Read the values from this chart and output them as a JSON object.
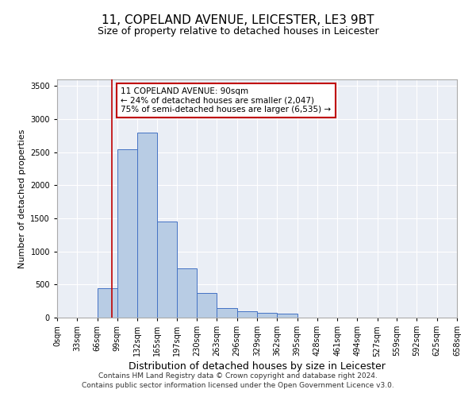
{
  "title_line1": "11, COPELAND AVENUE, LEICESTER, LE3 9BT",
  "title_line2": "Size of property relative to detached houses in Leicester",
  "xlabel": "Distribution of detached houses by size in Leicester",
  "ylabel": "Number of detached properties",
  "bar_color": "#b8cce4",
  "bar_edgecolor": "#4472c4",
  "background_color": "#eaeef5",
  "annotation_text": "11 COPELAND AVENUE: 90sqm\n← 24% of detached houses are smaller (2,047)\n75% of semi-detached houses are larger (6,535) →",
  "property_sqm": 90,
  "bin_edges": [
    0,
    33,
    66,
    99,
    132,
    165,
    197,
    230,
    263,
    296,
    329,
    362,
    395,
    428,
    461,
    494,
    527,
    559,
    592,
    625,
    658
  ],
  "bar_heights": [
    0,
    0,
    450,
    2550,
    2800,
    1450,
    750,
    375,
    150,
    100,
    75,
    60,
    0,
    0,
    0,
    0,
    0,
    0,
    0,
    0
  ],
  "ylim": [
    0,
    3600
  ],
  "yticks": [
    0,
    500,
    1000,
    1500,
    2000,
    2500,
    3000,
    3500
  ],
  "vline_color": "#c00000",
  "annotation_box_edgecolor": "#c00000",
  "footer_line1": "Contains HM Land Registry data © Crown copyright and database right 2024.",
  "footer_line2": "Contains public sector information licensed under the Open Government Licence v3.0.",
  "title_fontsize": 11,
  "subtitle_fontsize": 9,
  "tick_label_fontsize": 7,
  "ylabel_fontsize": 8,
  "xlabel_fontsize": 9,
  "annotation_fontsize": 7.5,
  "footer_fontsize": 6.5
}
